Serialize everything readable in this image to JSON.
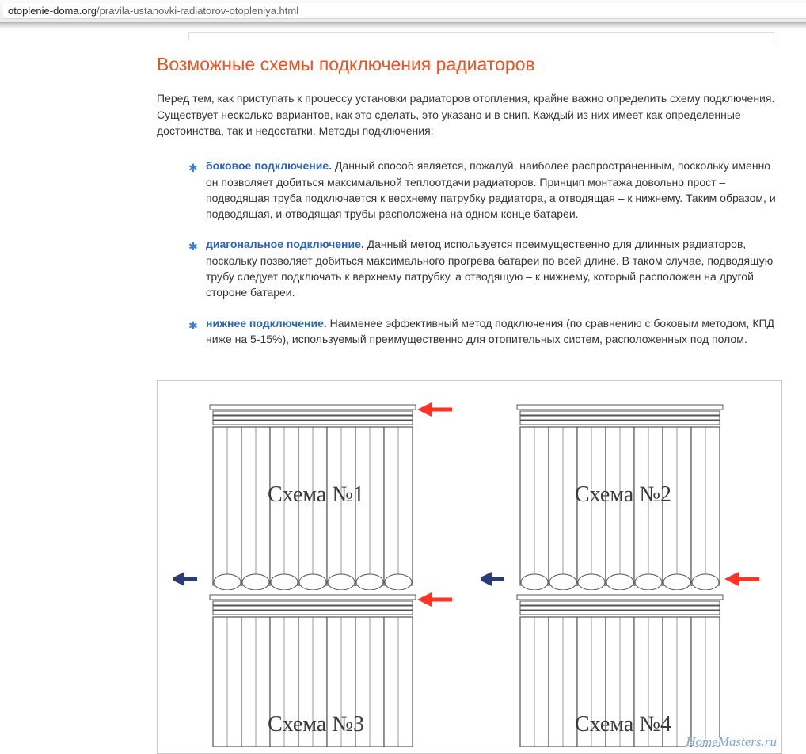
{
  "browser": {
    "url_domain": "otoplenie-doma.org",
    "url_path": "/pravila-ustanovki-radiatorov-otopleniya.html"
  },
  "article": {
    "heading": "Возможные схемы подключения радиаторов",
    "heading_color": "#ed5321",
    "intro": "Перед тем, как приступать к процессу установки радиаторов отопления, крайне важно определить схему подключения. Существует несколько вариантов, как это сделать, это указано и в снип. Каждый из них имеет как определенные достоинства, так и недостатки. Методы подключения:",
    "bullet_glyph": "✱",
    "bullet_color": "#3a7ed0",
    "lead_color": "#2a64b2",
    "items": [
      {
        "lead": "боковое подключение.",
        "text": " Данный способ является, пожалуй, наиболее распространенным, поскольку именно он позволяет добиться максимальной теплоотдачи радиаторов. Принцип монтажа довольно прост – подводящая труба подключается к верхнему патрубку радиатора, а отводящая – к нижнему. Таким образом, и подводящая, и отводящая трубы расположена на одном конце батареи."
      },
      {
        "lead": "диагональное подключение.",
        "text": " Данный метод используется преимущественно для длинных радиаторов, поскольку позволяет добиться максимального прогрева батареи по всей длине. В таком случае, подводящую трубу следует подключать к верхнему патрубку, а отводящую – к нижнему, который расположен на другой стороне батареи."
      },
      {
        "lead": "нижнее подключение.",
        "text": " Наименее эффективный метод подключения (по сравнению с боковым методом, КПД ниже на 5-15%), используемый преимущественно для отопительных систем, расположенных под полом."
      }
    ]
  },
  "diagram": {
    "border_color": "#c8c8c8",
    "watermark": "HomeMasters.ru",
    "watermark_color": "#7aa6d4",
    "section_count": 7,
    "radiator_outline": "#555555",
    "radiator_fill": "#ffffff",
    "arrow_in_color": "#ff3322",
    "arrow_out_color": "#2a3b7a",
    "caption_font": "Georgia",
    "caption_fontsize": 28,
    "schemes": [
      {
        "label": "Схема №1",
        "in_side": "right",
        "in_v": "top",
        "out_side": "left",
        "out_v": "bottom"
      },
      {
        "label": "Схема №2",
        "in_side": "right",
        "in_v": "bottom",
        "out_side": "left",
        "out_v": "bottom"
      },
      {
        "label": "Схема №3",
        "in_side": "right",
        "in_v": "top",
        "out_side": "right",
        "out_v": "bottom"
      },
      {
        "label": "Схема №4",
        "in_side": "right",
        "in_v": "bottom",
        "out_side": "left",
        "out_v": "top"
      }
    ]
  }
}
